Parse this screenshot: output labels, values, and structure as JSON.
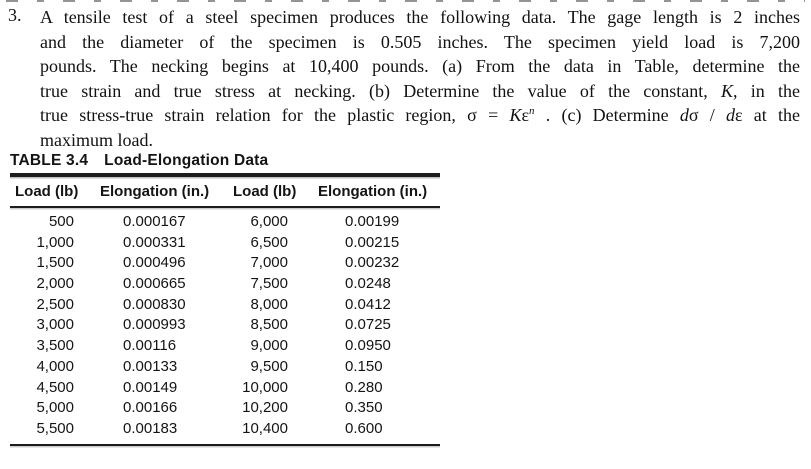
{
  "problem": {
    "number": "3.",
    "line1": "A tensile test of a steel specimen produces the following data. The gage length is 2 inches",
    "line2": "and the diameter of the specimen is 0.505 inches. The specimen yield load is 7,200",
    "line3": "pounds. The necking begins at 10,400 pounds. (a) From the data in Table, determine the",
    "line4a": "true strain and true stress at necking. (b) Determine the value of the constant, ",
    "line4_K": "K",
    "line4b": ", in the",
    "line5a": "true stress-true strain relation for the plastic region, σ = ",
    "line5_K": "K",
    "line5_eps": "ε",
    "line5_n": "n",
    "line5b": " . (c) Determine ",
    "line5_d1": "d",
    "line5_sigma": "σ",
    "line5_slash": " / ",
    "line5_d2": "d",
    "line5_eps2": "ε",
    "line5c": " at the",
    "line6": "maximum load."
  },
  "table": {
    "title_label": "TABLE 3.4",
    "title_text": "Load-Elongation Data",
    "headers": [
      "Load (lb)",
      "Elongation (in.)",
      "Load (lb)",
      "Elongation (in.)"
    ],
    "rows": [
      [
        "500",
        "0.000167",
        "6,000",
        "0.00199"
      ],
      [
        "1,000",
        "0.000331",
        "6,500",
        "0.00215"
      ],
      [
        "1,500",
        "0.000496",
        "7,000",
        "0.00232"
      ],
      [
        "2,000",
        "0.000665",
        "7,500",
        "0.0248"
      ],
      [
        "2,500",
        "0.000830",
        "8,000",
        "0.0412"
      ],
      [
        "3,000",
        "0.000993",
        "8,500",
        "0.0725"
      ],
      [
        "3,500",
        "0.00116",
        "9,000",
        "0.0950"
      ],
      [
        "4,000",
        "0.00133",
        "9,500",
        "0.150"
      ],
      [
        "4,500",
        "0.00149",
        "10,000",
        "0.280"
      ],
      [
        "5,000",
        "0.00166",
        "10,200",
        "0.350"
      ],
      [
        "5,500",
        "0.00183",
        "10,400",
        "0.600"
      ]
    ],
    "text_color": "#141414",
    "rule_color": "#1c1c1c"
  }
}
